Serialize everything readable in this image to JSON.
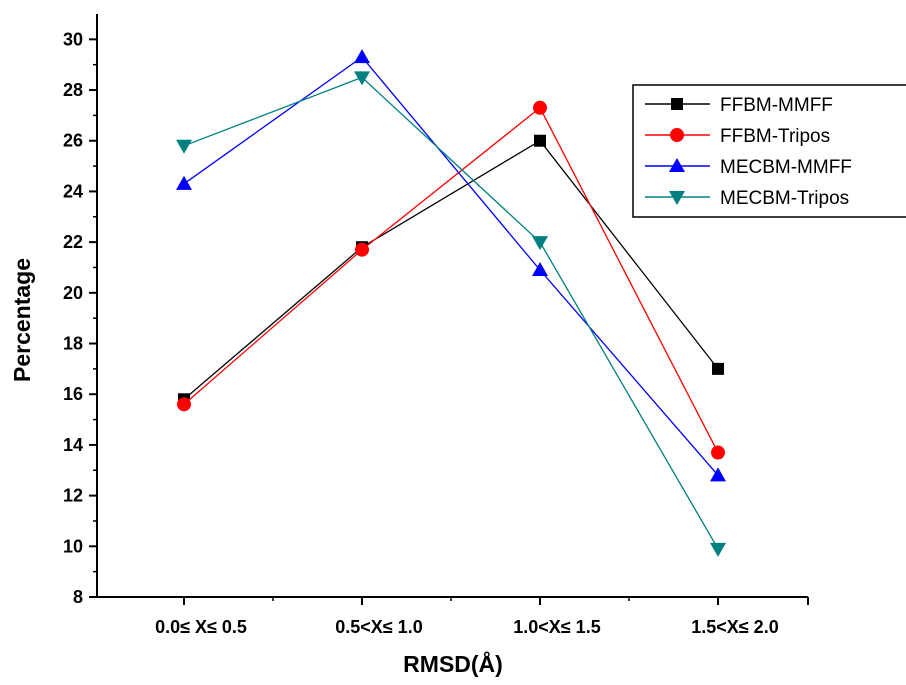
{
  "chart_data": {
    "type": "line",
    "title": "",
    "xlabel": "RMSD(Å)",
    "ylabel": "Percentage",
    "categories": [
      "0.0≤ X≤ 0.5",
      "0.5<X≤ 1.0",
      "1.0<X≤ 1.5",
      "1.5<X≤ 2.0"
    ],
    "ylim": [
      8,
      31
    ],
    "yticks": [
      8,
      10,
      12,
      14,
      16,
      18,
      20,
      22,
      24,
      26,
      28,
      30
    ],
    "grid": false,
    "legend_position": "top-right",
    "series": [
      {
        "name": "FFBM-MMFF",
        "values": [
          15.8,
          21.8,
          26.0,
          17.0
        ],
        "color": "#000000",
        "marker": "square"
      },
      {
        "name": "FFBM-Tripos",
        "values": [
          15.6,
          21.7,
          27.3,
          13.7
        ],
        "color": "#ff0000",
        "marker": "circle"
      },
      {
        "name": "MECBM-MMFF",
        "values": [
          24.3,
          29.3,
          20.9,
          12.8
        ],
        "color": "#0000ff",
        "marker": "triangle-up"
      },
      {
        "name": "MECBM-Tripos",
        "values": [
          25.8,
          28.5,
          22.0,
          9.9
        ],
        "color": "#008080",
        "marker": "triangle-down"
      }
    ]
  }
}
